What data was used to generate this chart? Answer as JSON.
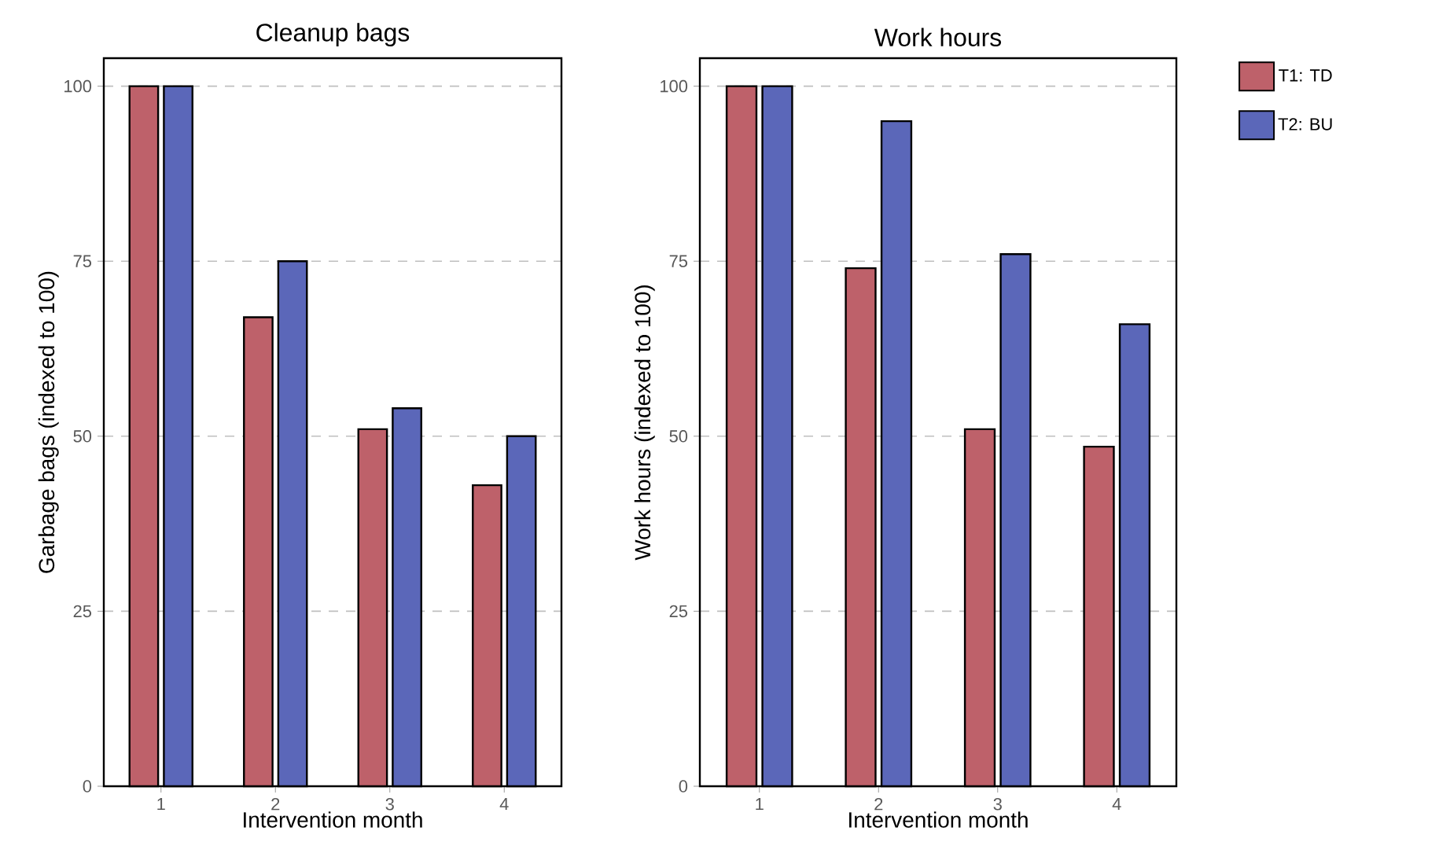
{
  "chart_data": [
    {
      "type": "bar",
      "title": "Cleanup bags",
      "xlabel": "Intervention month",
      "ylabel": "Garbage bags (indexed to 100)",
      "categories": [
        "1",
        "2",
        "3",
        "4"
      ],
      "series": [
        {
          "color": "#be616a",
          "values": [
            100,
            67,
            51,
            43
          ]
        },
        {
          "color": "#5b67b9",
          "values": [
            100,
            75,
            54,
            50
          ]
        }
      ],
      "ylim": [
        0,
        104
      ],
      "yticks": [
        0,
        25,
        50,
        75,
        100
      ],
      "grid": "y",
      "legend": false
    },
    {
      "type": "bar",
      "title": "Work hours",
      "xlabel": "Intervention month",
      "ylabel": "Work hours (indexed to 100)",
      "categories": [
        "1",
        "2",
        "3",
        "4"
      ],
      "series": [
        {
          "name": "T1: TD",
          "color": "#be616a",
          "values": [
            100,
            74,
            51,
            48.5
          ]
        },
        {
          "name": "T2: BU",
          "color": "#5b67b9",
          "values": [
            100,
            95,
            76,
            66
          ]
        }
      ],
      "ylim": [
        0,
        104
      ],
      "yticks": [
        0,
        25,
        50,
        75,
        100
      ],
      "grid": "y",
      "legend": "right"
    }
  ]
}
